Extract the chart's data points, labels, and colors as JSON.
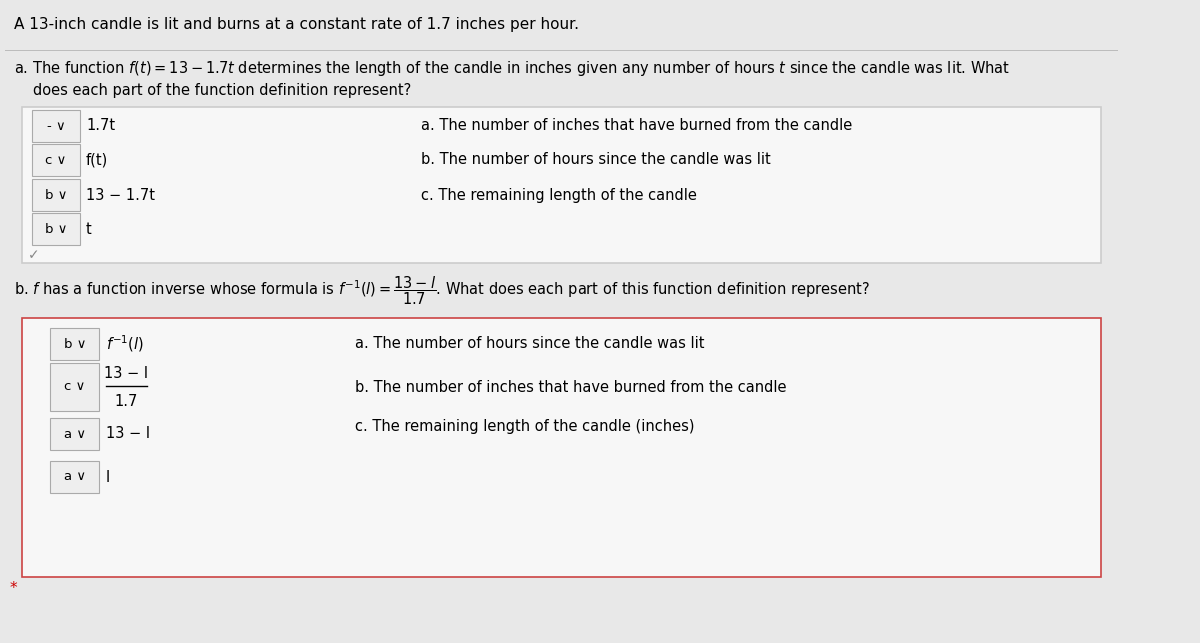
{
  "bg_color": "#f0f0f0",
  "white": "#ffffff",
  "header_text": "A 13-inch candle is lit and burns at a constant rate of 1.7 inches per hour.",
  "part_a_intro": "a. The function $f(t) = 13 - 1.7t$ determines the length of the candle in inches given any number of hours $t$ since the candle was lit. What\n   does each part of the function definition represent?",
  "part_a_rows": [
    {
      "badge": "- ∨",
      "expr": "1.7t"
    },
    {
      "badge": "c ∨",
      "expr": "f(t)"
    },
    {
      "badge": "b ∨",
      "expr": "13 − 1.7t"
    },
    {
      "badge": "b ∨",
      "expr": "t"
    }
  ],
  "part_a_options": [
    "a. The number of inches that have burned from the candle",
    "b. The number of hours since the candle was lit",
    "c. The remaining length of the candle"
  ],
  "part_b_intro": "b. $f$ has a function inverse whose formula is $f^{-1}(l) = \\dfrac{13 - l}{1.7}$. What does each part of this function definition represent?",
  "part_b_rows": [
    {
      "badge": "b ∨",
      "expr": "$f^{-1}(l)$"
    },
    {
      "badge": "c ∨",
      "expr_frac": [
        "13 − l",
        "1.7"
      ]
    },
    {
      "badge": "a ∨",
      "expr": "13 − l"
    },
    {
      "badge": "a ∨",
      "expr": "l"
    }
  ],
  "part_b_options": [
    "a. The number of hours since the candle was lit",
    "b. The number of inches that have burned from the candle",
    "c. The remaining length of the candle (inches)"
  ]
}
